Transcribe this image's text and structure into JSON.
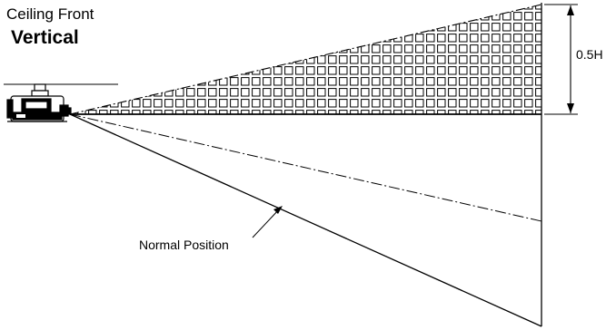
{
  "diagram": {
    "subtitle": "Ceiling Front",
    "title": "Vertical",
    "dimension_label": "0.5H",
    "callout_label": "Normal Position"
  },
  "colors": {
    "line": "#000000",
    "background": "#ffffff"
  }
}
